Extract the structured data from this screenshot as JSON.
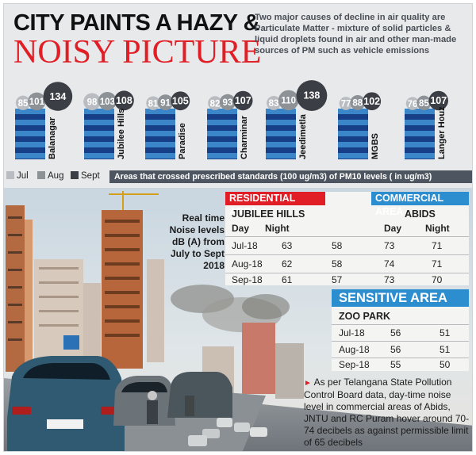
{
  "header": {
    "title_line1": "CITY PAINTS A HAZY &",
    "title_line2": "NOISY PICTURE",
    "intro": "Two major causes of decline in air quality are Particulate Matter - mixture of solid particles & liquid droplets found in air and other man-made sources of PM such as vehicle emissions"
  },
  "colors": {
    "jul": "#b9bdc1",
    "aug": "#8d9297",
    "sept": "#3b3f45",
    "stripe_light": "#3a86c9",
    "stripe_dark": "#163f87",
    "accent_red": "#e11d25",
    "commercial_blue": "#2c8dcf"
  },
  "legend": {
    "jul": "Jul",
    "aug": "Aug",
    "sept": "Sept",
    "caption": "Areas that crossed prescribed standards (100 ug/m3) of PM10 levels  ( in ug/m3)"
  },
  "chart_data": {
    "type": "bar",
    "categories": [
      "Balanagar",
      "Jubilee Hills",
      "Paradise",
      "Charminar",
      "Jeedimetla",
      "MGBS",
      "Langer Houz"
    ],
    "series": [
      {
        "name": "Jul",
        "values": [
          85,
          98,
          81,
          82,
          83,
          77,
          76
        ]
      },
      {
        "name": "Aug",
        "values": [
          101,
          103,
          91,
          93,
          110,
          88,
          85
        ]
      },
      {
        "name": "Sept",
        "values": [
          134,
          108,
          105,
          107,
          138,
          102,
          107
        ]
      }
    ]
  },
  "noise": {
    "label": "Real time Noise levels dB (A) from July to Sept 2018",
    "residential": {
      "header": "RESIDENTIAL AREA",
      "location": "JUBILEE HILLS",
      "col_day": "Day",
      "col_night": "Night",
      "rows": [
        {
          "month": "Jul-18",
          "day": "63",
          "night": "58"
        },
        {
          "month": "Aug-18",
          "day": "62",
          "night": "58"
        },
        {
          "month": "Sep-18",
          "day": "61",
          "night": "57"
        }
      ]
    },
    "commercial": {
      "header": "COMMERCIAL AREA",
      "location": "ABIDS",
      "col_day": "Day",
      "col_night": "Night",
      "rows": [
        {
          "day": "73",
          "night": "71"
        },
        {
          "day": "74",
          "night": "71"
        },
        {
          "day": "73",
          "night": "70"
        }
      ]
    },
    "sensitive": {
      "header": "SENSITIVE AREA",
      "location": "ZOO PARK",
      "rows": [
        {
          "month": "Jul-18",
          "day": "56",
          "night": "51"
        },
        {
          "month": "Aug-18",
          "day": "56",
          "night": "51"
        },
        {
          "month": "Sep-18",
          "day": "55",
          "night": "50"
        }
      ]
    }
  },
  "footnote": "As per Telangana State Pollution Control Board data, day-time noise level in commercial areas of Abids, JNTU and RC Puram hover around 70-74 decibels as against permissible limit of 65 decibels"
}
